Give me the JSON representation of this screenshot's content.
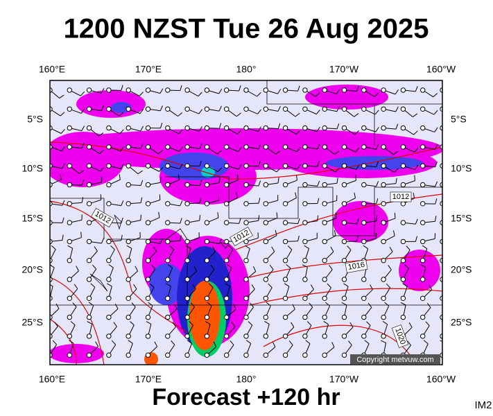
{
  "title": "1200 NZST Tue 26 Aug 2025",
  "lon_labels": [
    "160°E",
    "170°E",
    "180°",
    "170°W",
    "160°W"
  ],
  "lat_labels": [
    "5°S",
    "10°S",
    "15°S",
    "20°S",
    "25°S"
  ],
  "isobar_labels": [
    "1012",
    "1012",
    "1012",
    "1016",
    "1020"
  ],
  "copyright": "Copyright metvuw.com",
  "footer": "Forecast +120 hr",
  "code": "IM2"
}
